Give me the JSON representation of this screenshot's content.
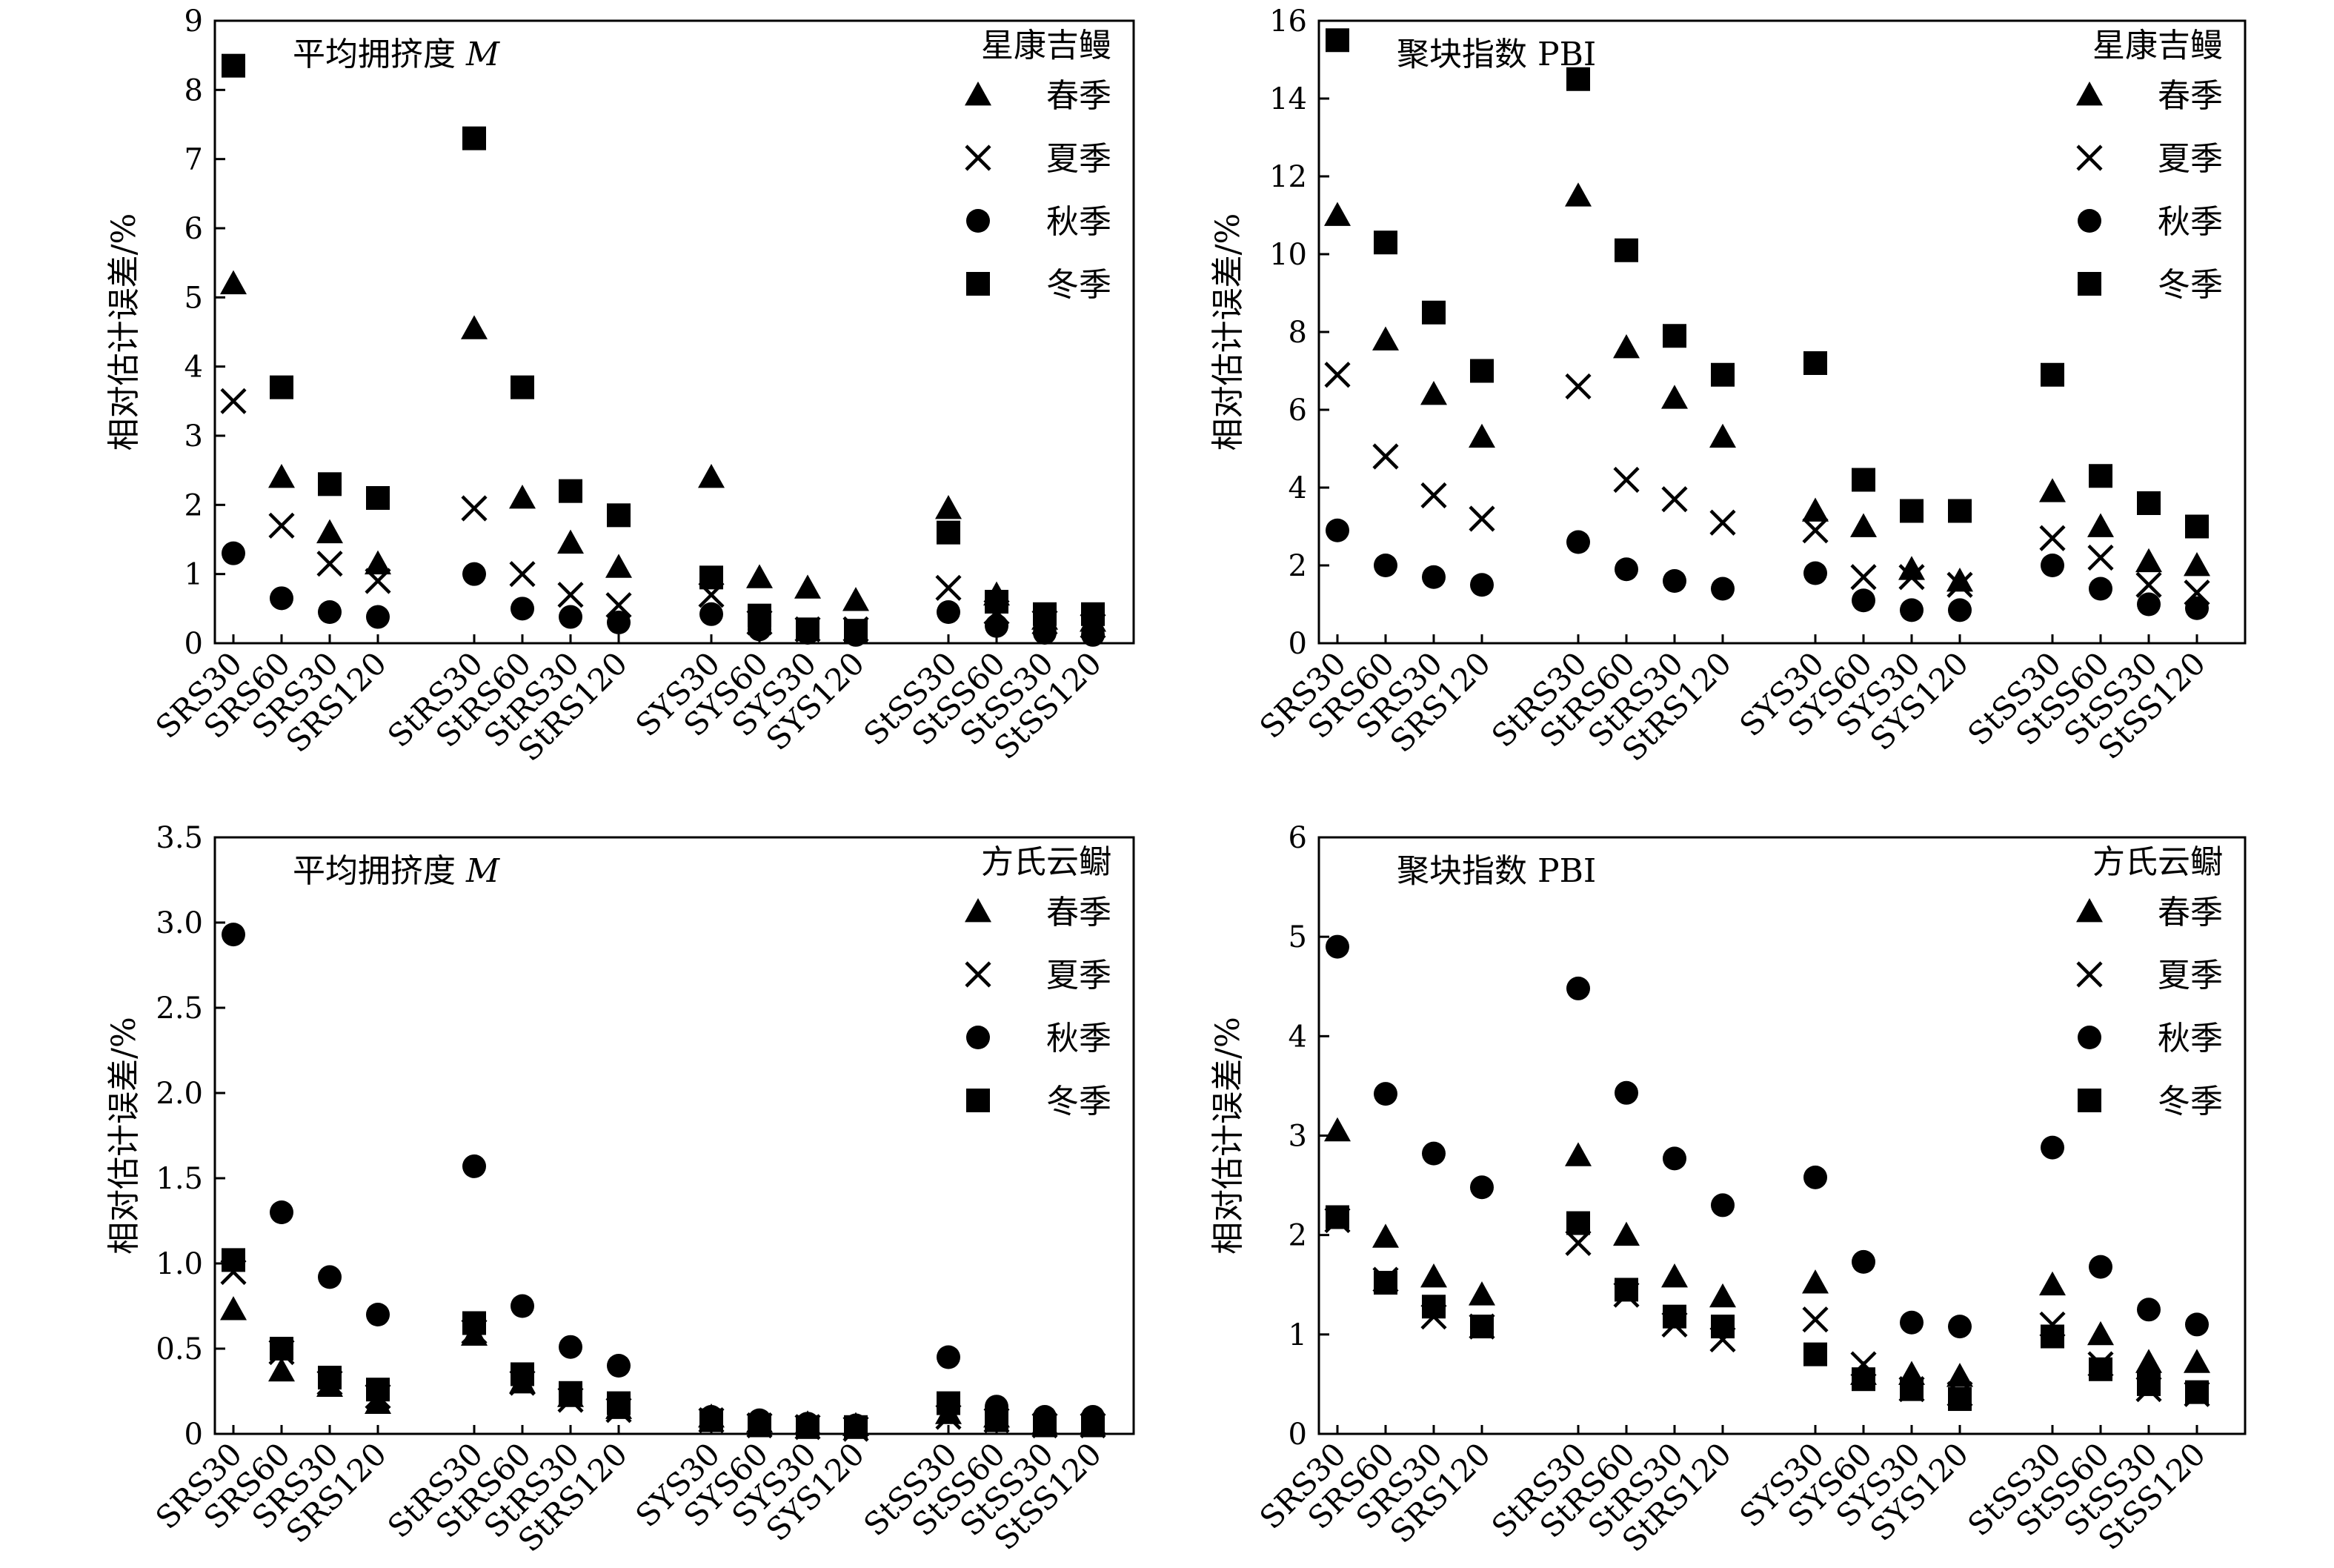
{
  "legend_labels": [
    "春季",
    "夏季",
    "秋季",
    "冬季"
  ],
  "chart_data": [
    {
      "type": "scatter",
      "title": "平均拥挤度",
      "title_symbol": "M",
      "species": "星康吉鳗",
      "ylabel": "相对估计误差/%",
      "ylim": [
        0,
        9
      ],
      "yticks": [
        "0",
        "1",
        "2",
        "3",
        "4",
        "5",
        "6",
        "7",
        "8",
        "9"
      ],
      "categories": [
        "SRS30",
        "SRS60",
        "SRS30",
        "SRS120",
        "StRS30",
        "StRS60",
        "StRS30",
        "StRS120",
        "SYS30",
        "SYS60",
        "SYS30",
        "SYS120",
        "StSS30",
        "StSS60",
        "StSS30",
        "StSS120"
      ],
      "series": [
        {
          "name": "春季",
          "marker": "triangle",
          "values": [
            5.2,
            2.4,
            1.6,
            1.15,
            4.55,
            2.1,
            1.45,
            1.1,
            2.4,
            0.95,
            0.8,
            0.62,
            1.95,
            0.7,
            0.35,
            0.32
          ]
        },
        {
          "name": "夏季",
          "marker": "cross",
          "values": [
            3.5,
            1.7,
            1.15,
            0.9,
            1.95,
            1.0,
            0.7,
            0.55,
            0.7,
            0.3,
            0.2,
            0.2,
            0.8,
            0.45,
            0.3,
            0.25
          ]
        },
        {
          "name": "秋季",
          "marker": "circle",
          "values": [
            1.3,
            0.65,
            0.45,
            0.38,
            1.0,
            0.5,
            0.38,
            0.3,
            0.42,
            0.2,
            0.15,
            0.12,
            0.45,
            0.25,
            0.15,
            0.12
          ]
        },
        {
          "name": "冬季",
          "marker": "square",
          "values": [
            8.35,
            3.7,
            2.3,
            2.1,
            7.3,
            3.7,
            2.2,
            1.85,
            0.95,
            0.4,
            0.2,
            0.18,
            1.6,
            0.6,
            0.42,
            0.42
          ]
        }
      ]
    },
    {
      "type": "scatter",
      "title": "聚块指数 PBI",
      "title_symbol": "",
      "species": "星康吉鳗",
      "ylabel": "相对估计误差/%",
      "ylim": [
        0,
        16
      ],
      "yticks": [
        "0",
        "2",
        "4",
        "6",
        "8",
        "10",
        "12",
        "14",
        "16"
      ],
      "categories": [
        "SRS30",
        "SRS60",
        "SRS30",
        "SRS120",
        "StRS30",
        "StRS60",
        "StRS30",
        "StRS120",
        "SYS30",
        "SYS60",
        "SYS30",
        "SYS120",
        "StSS30",
        "StSS60",
        "StSS30",
        "StSS120"
      ],
      "series": [
        {
          "name": "春季",
          "marker": "triangle",
          "values": [
            11.0,
            7.8,
            6.4,
            5.3,
            11.5,
            7.6,
            6.3,
            5.3,
            3.4,
            3.0,
            1.9,
            1.6,
            3.9,
            3.0,
            2.1,
            2.0
          ]
        },
        {
          "name": "夏季",
          "marker": "cross",
          "values": [
            6.9,
            4.8,
            3.8,
            3.2,
            6.6,
            4.2,
            3.7,
            3.1,
            2.9,
            1.7,
            1.7,
            1.5,
            2.7,
            2.2,
            1.5,
            1.3
          ]
        },
        {
          "name": "秋季",
          "marker": "circle",
          "values": [
            2.9,
            2.0,
            1.7,
            1.5,
            2.6,
            1.9,
            1.6,
            1.4,
            1.8,
            1.1,
            0.85,
            0.85,
            2.0,
            1.4,
            1.0,
            0.9
          ]
        },
        {
          "name": "冬季",
          "marker": "square",
          "values": [
            15.5,
            10.3,
            8.5,
            7.0,
            14.5,
            10.1,
            7.9,
            6.9,
            7.2,
            4.2,
            3.4,
            3.4,
            6.9,
            4.3,
            3.6,
            3.0
          ]
        }
      ]
    },
    {
      "type": "scatter",
      "title": "平均拥挤度",
      "title_symbol": "M",
      "species": "方氏云鳚",
      "ylabel": "相对估计误差/%",
      "ylim": [
        0,
        3.5
      ],
      "yticks": [
        "0",
        "0.5",
        "1.0",
        "1.5",
        "2.0",
        "2.5",
        "3.0",
        "3.5"
      ],
      "categories": [
        "SRS30",
        "SRS60",
        "SRS30",
        "SRS120",
        "StRS30",
        "StRS60",
        "StRS30",
        "StRS120",
        "SYS30",
        "SYS60",
        "SYS30",
        "SYS120",
        "StSS30",
        "StSS60",
        "StSS30",
        "StSS120"
      ],
      "series": [
        {
          "name": "春季",
          "marker": "triangle",
          "values": [
            0.73,
            0.37,
            0.28,
            0.18,
            0.58,
            0.3,
            0.22,
            0.15,
            0.1,
            0.07,
            0.06,
            0.05,
            0.12,
            0.1,
            0.06,
            0.06
          ]
        },
        {
          "name": "夏季",
          "marker": "cross",
          "values": [
            0.95,
            0.48,
            0.3,
            0.22,
            0.6,
            0.3,
            0.2,
            0.14,
            0.08,
            0.05,
            0.04,
            0.03,
            0.1,
            0.08,
            0.05,
            0.05
          ]
        },
        {
          "name": "秋季",
          "marker": "circle",
          "values": [
            2.93,
            1.3,
            0.92,
            0.7,
            1.57,
            0.75,
            0.51,
            0.4,
            0.1,
            0.08,
            0.06,
            0.05,
            0.45,
            0.16,
            0.1,
            0.1
          ]
        },
        {
          "name": "冬季",
          "marker": "square",
          "values": [
            1.02,
            0.5,
            0.33,
            0.26,
            0.65,
            0.35,
            0.24,
            0.18,
            0.08,
            0.05,
            0.04,
            0.04,
            0.18,
            0.08,
            0.05,
            0.05
          ]
        }
      ]
    },
    {
      "type": "scatter",
      "title": "聚块指数 PBI",
      "title_symbol": "",
      "species": "方氏云鳚",
      "ylabel": "相对估计误差/%",
      "ylim": [
        0,
        6
      ],
      "yticks": [
        "0",
        "1",
        "2",
        "3",
        "4",
        "5",
        "6"
      ],
      "categories": [
        "SRS30",
        "SRS60",
        "SRS30",
        "SRS120",
        "StRS30",
        "StRS60",
        "StRS30",
        "StRS120",
        "SYS30",
        "SYS60",
        "SYS30",
        "SYS120",
        "StSS30",
        "StSS60",
        "StSS30",
        "StSS120"
      ],
      "series": [
        {
          "name": "春季",
          "marker": "triangle",
          "values": [
            3.05,
            1.98,
            1.58,
            1.4,
            2.8,
            2.0,
            1.58,
            1.38,
            1.52,
            0.6,
            0.6,
            0.58,
            1.5,
            1.0,
            0.72,
            0.72
          ]
        },
        {
          "name": "夏季",
          "marker": "cross",
          "values": [
            2.15,
            1.55,
            1.18,
            1.08,
            1.92,
            1.4,
            1.1,
            0.95,
            1.15,
            0.7,
            0.45,
            0.4,
            1.1,
            0.7,
            0.45,
            0.4
          ]
        },
        {
          "name": "秋季",
          "marker": "circle",
          "values": [
            4.9,
            3.42,
            2.82,
            2.48,
            4.48,
            3.43,
            2.77,
            2.3,
            2.58,
            1.73,
            1.12,
            1.08,
            2.88,
            1.68,
            1.25,
            1.1
          ]
        },
        {
          "name": "冬季",
          "marker": "square",
          "values": [
            2.18,
            1.52,
            1.28,
            1.08,
            2.12,
            1.45,
            1.18,
            1.08,
            0.8,
            0.55,
            0.45,
            0.35,
            0.98,
            0.65,
            0.5,
            0.42
          ]
        }
      ]
    }
  ]
}
